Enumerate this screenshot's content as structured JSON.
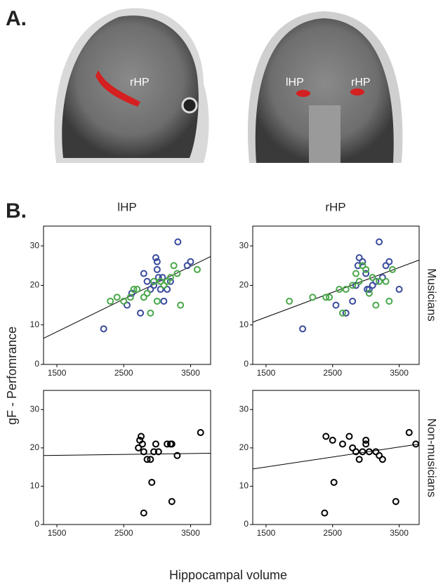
{
  "figure": {
    "panels": [
      "A.",
      "B."
    ],
    "mri_labels": [
      "rHP",
      "lHP",
      "rHP"
    ],
    "columns": [
      "lHP",
      "rHP"
    ],
    "rows": [
      "Musicians",
      "Non-musicians"
    ],
    "ylabel": "gF - Perfomrance",
    "xlabel": "Hippocampal volume"
  },
  "chart_data": [
    {
      "type": "scatter",
      "xlim": [
        1300,
        3800
      ],
      "ylim": [
        0,
        35
      ],
      "xticks": [
        1500,
        2500,
        3500
      ],
      "yticks": [
        0,
        10,
        20,
        30
      ],
      "series": [
        {
          "color": "#3a4a9c",
          "x": [
            2200,
            2550,
            2620,
            2750,
            2800,
            2850,
            2900,
            2950,
            2980,
            3000,
            3000,
            3020,
            3050,
            3080,
            3100,
            3150,
            3200,
            3310,
            3450,
            3500
          ],
          "values": [
            9,
            15,
            18,
            13,
            23,
            21,
            19,
            20,
            27,
            26,
            24,
            22,
            19,
            22,
            16,
            19,
            21,
            31,
            25,
            26
          ]
        },
        {
          "color": "#4aa84a",
          "x": [
            2300,
            2400,
            2500,
            2600,
            2650,
            2700,
            2800,
            2850,
            2900,
            2950,
            3000,
            3050,
            3100,
            3150,
            3200,
            3250,
            3300,
            3350,
            3600
          ],
          "values": [
            16,
            17,
            16,
            17,
            19,
            19,
            17,
            18,
            13,
            21,
            16,
            21,
            20,
            21,
            22,
            25,
            23,
            15,
            24
          ]
        }
      ],
      "trend": {
        "color": "#000000",
        "x": [
          1300,
          3800
        ],
        "values": [
          6.6,
          27.3
        ]
      }
    },
    {
      "type": "scatter",
      "xlim": [
        1300,
        3800
      ],
      "ylim": [
        0,
        35
      ],
      "xticks": [
        1500,
        2500,
        3500
      ],
      "yticks": [
        0,
        10,
        20,
        30
      ],
      "series": [
        {
          "color": "#3a4a9c",
          "x": [
            2050,
            2550,
            2700,
            2800,
            2850,
            2900,
            2950,
            3000,
            3050,
            3100,
            3150,
            3200,
            3250,
            3300,
            3350,
            3500,
            2880,
            3020
          ],
          "values": [
            9,
            15,
            13,
            16,
            20,
            27,
            26,
            23,
            19,
            20,
            21,
            31,
            22,
            25,
            26,
            19,
            25,
            19
          ]
        },
        {
          "color": "#4aa84a",
          "x": [
            1850,
            2200,
            2400,
            2450,
            2600,
            2650,
            2700,
            2800,
            2850,
            2900,
            2950,
            3000,
            3050,
            3100,
            3150,
            3200,
            3300,
            3400,
            3350
          ],
          "values": [
            16,
            17,
            17,
            17,
            19,
            13,
            19,
            20,
            23,
            21,
            25,
            24,
            18,
            22,
            15,
            21,
            21,
            24,
            16
          ]
        }
      ],
      "trend": {
        "color": "#000000",
        "x": [
          1300,
          3800
        ],
        "values": [
          10.7,
          26.4
        ]
      }
    },
    {
      "type": "scatter",
      "xlim": [
        1300,
        3800
      ],
      "ylim": [
        0,
        35
      ],
      "xticks": [
        1500,
        2500,
        3500
      ],
      "yticks": [
        0,
        10,
        20,
        30
      ],
      "series": [
        {
          "color": "#000000",
          "x": [
            2720,
            2740,
            2760,
            2780,
            2800,
            2850,
            2900,
            2950,
            2980,
            3020,
            3150,
            3200,
            3220,
            3300,
            3650,
            2920,
            2800,
            3220
          ],
          "values": [
            20,
            22,
            23,
            21,
            19,
            17,
            17,
            19,
            21,
            19,
            21,
            21,
            6,
            18,
            24,
            11,
            3,
            21
          ]
        }
      ],
      "trend": {
        "color": "#000000",
        "x": [
          1300,
          3800
        ],
        "values": [
          18.0,
          18.6
        ]
      }
    },
    {
      "type": "scatter",
      "xlim": [
        1300,
        3800
      ],
      "ylim": [
        0,
        35
      ],
      "xticks": [
        1500,
        2500,
        3500
      ],
      "yticks": [
        0,
        10,
        20,
        30
      ],
      "series": [
        {
          "color": "#000000",
          "x": [
            2400,
            2500,
            2650,
            2750,
            2800,
            2850,
            2900,
            2950,
            3000,
            3000,
            3050,
            3150,
            3200,
            3250,
            2520,
            2380,
            3450,
            3650,
            3750
          ],
          "values": [
            23,
            22,
            21,
            23,
            20,
            19,
            17,
            19,
            22,
            21,
            19,
            19,
            18,
            17,
            11,
            3,
            6,
            24,
            21
          ]
        }
      ],
      "trend": {
        "color": "#000000",
        "x": [
          1300,
          3800
        ],
        "values": [
          14.5,
          21.0
        ]
      }
    }
  ]
}
